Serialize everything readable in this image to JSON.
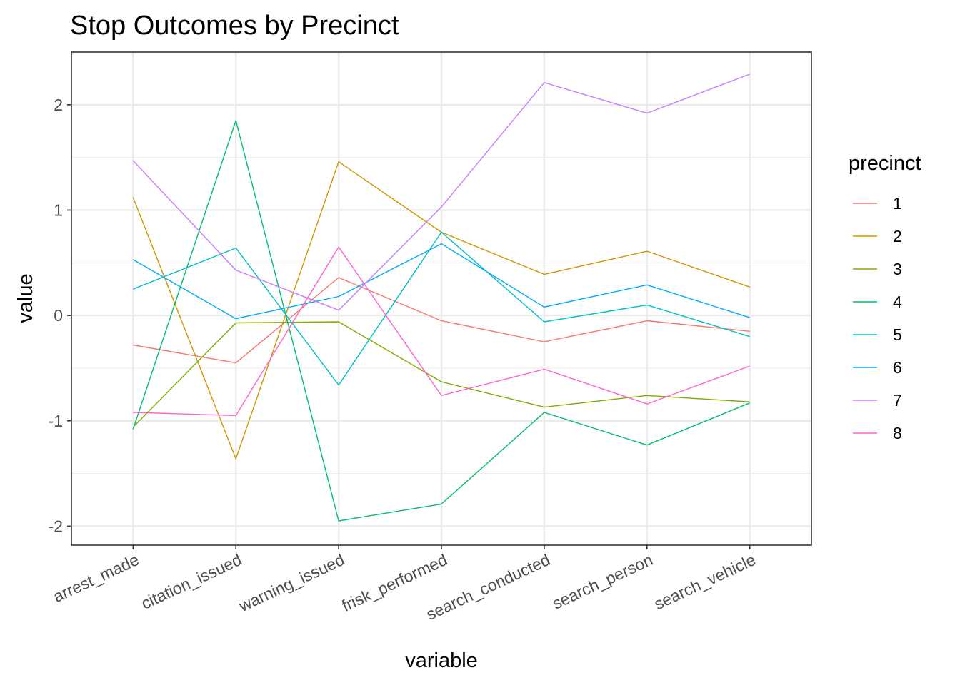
{
  "chart_data": {
    "type": "line",
    "title": "Stop Outcomes by Precinct",
    "xlabel": "variable",
    "ylabel": "value",
    "categories": [
      "arrest_made",
      "citation_issued",
      "warning_issued",
      "frisk_performed",
      "search_conducted",
      "search_person",
      "search_vehicle"
    ],
    "ylim": [
      -2.18,
      2.5
    ],
    "yticks": [
      "-2",
      "-1",
      "0",
      "1",
      "2"
    ],
    "ytick_values": [
      -2,
      -1,
      0,
      1,
      2
    ],
    "grid": true,
    "legend": {
      "title": "precinct",
      "position": "right"
    },
    "series": [
      {
        "name": "1",
        "color": "#F8766D",
        "values": [
          -0.28,
          -0.45,
          0.36,
          -0.05,
          -0.25,
          -0.05,
          -0.15
        ]
      },
      {
        "name": "2",
        "color": "#CD9600",
        "values": [
          1.12,
          -1.36,
          1.46,
          0.79,
          0.39,
          0.61,
          0.27
        ]
      },
      {
        "name": "3",
        "color": "#7CAE00",
        "values": [
          -1.06,
          -0.07,
          -0.06,
          -0.63,
          -0.87,
          -0.76,
          -0.82
        ]
      },
      {
        "name": "4",
        "color": "#00BE67",
        "values": [
          -1.08,
          1.85,
          -1.95,
          -1.79,
          -0.92,
          -1.23,
          -0.83
        ]
      },
      {
        "name": "5",
        "color": "#00BFC4",
        "values": [
          0.25,
          0.64,
          -0.66,
          0.79,
          -0.06,
          0.1,
          -0.2
        ]
      },
      {
        "name": "6",
        "color": "#00A9FF",
        "values": [
          0.53,
          -0.03,
          0.18,
          0.68,
          0.08,
          0.29,
          -0.02
        ]
      },
      {
        "name": "7",
        "color": "#C77CFF",
        "values": [
          1.47,
          0.43,
          0.05,
          1.03,
          2.21,
          1.92,
          2.29
        ]
      },
      {
        "name": "8",
        "color": "#FF61CC",
        "values": [
          -0.92,
          -0.95,
          0.65,
          -0.76,
          -0.51,
          -0.84,
          -0.48
        ]
      }
    ]
  }
}
